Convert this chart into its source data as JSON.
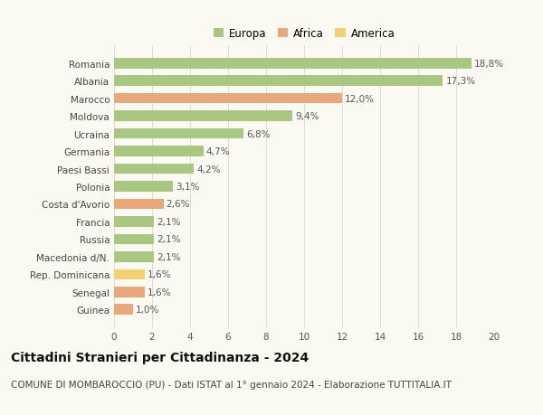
{
  "categories": [
    "Guinea",
    "Senegal",
    "Rep. Dominicana",
    "Macedonia d/N.",
    "Russia",
    "Francia",
    "Costa d'Avorio",
    "Polonia",
    "Paesi Bassi",
    "Germania",
    "Ucraina",
    "Moldova",
    "Marocco",
    "Albania",
    "Romania"
  ],
  "values": [
    1.0,
    1.6,
    1.6,
    2.1,
    2.1,
    2.1,
    2.6,
    3.1,
    4.2,
    4.7,
    6.8,
    9.4,
    12.0,
    17.3,
    18.8
  ],
  "labels": [
    "1,0%",
    "1,6%",
    "1,6%",
    "2,1%",
    "2,1%",
    "2,1%",
    "2,6%",
    "3,1%",
    "4,2%",
    "4,7%",
    "6,8%",
    "9,4%",
    "12,0%",
    "17,3%",
    "18,8%"
  ],
  "colors": [
    "#e8a87c",
    "#e8a87c",
    "#f5d06e",
    "#a8c882",
    "#a8c882",
    "#a8c882",
    "#e8a87c",
    "#a8c882",
    "#a8c882",
    "#a8c882",
    "#a8c882",
    "#a8c882",
    "#e8a87c",
    "#a8c882",
    "#a8c882"
  ],
  "legend": [
    {
      "label": "Europa",
      "color": "#a8c882"
    },
    {
      "label": "Africa",
      "color": "#e8a87c"
    },
    {
      "label": "America",
      "color": "#f5d06e"
    }
  ],
  "xlim": [
    0,
    20
  ],
  "xticks": [
    0,
    2,
    4,
    6,
    8,
    10,
    12,
    14,
    16,
    18,
    20
  ],
  "title": "Cittadini Stranieri per Cittadinanza - 2024",
  "subtitle": "COMUNE DI MOMBAROCCIO (PU) - Dati ISTAT al 1° gennaio 2024 - Elaborazione TUTTITALIA.IT",
  "background_color": "#fafaf2",
  "grid_color": "#ddddcc",
  "bar_height": 0.6,
  "label_fontsize": 7.5,
  "ytick_fontsize": 7.5,
  "xtick_fontsize": 7.5,
  "title_fontsize": 10,
  "subtitle_fontsize": 7.5
}
